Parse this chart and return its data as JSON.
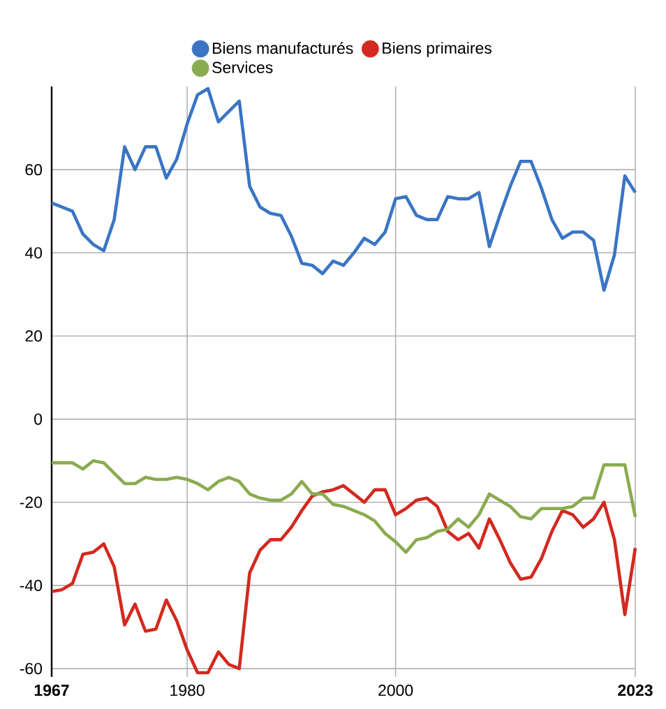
{
  "chart_data": {
    "type": "line",
    "x": [
      1967,
      1968,
      1969,
      1970,
      1971,
      1972,
      1973,
      1974,
      1975,
      1976,
      1977,
      1978,
      1979,
      1980,
      1981,
      1982,
      1983,
      1984,
      1985,
      1986,
      1987,
      1988,
      1989,
      1990,
      1991,
      1992,
      1993,
      1994,
      1995,
      1996,
      1997,
      1998,
      1999,
      2000,
      2001,
      2002,
      2003,
      2004,
      2005,
      2006,
      2007,
      2008,
      2009,
      2010,
      2011,
      2012,
      2013,
      2014,
      2015,
      2016,
      2017,
      2018,
      2019,
      2020,
      2021,
      2022,
      2023
    ],
    "series": [
      {
        "name": "Biens manufacturés",
        "color": "#3a75c4",
        "values": [
          52,
          51,
          50,
          44.5,
          42,
          40.5,
          48,
          65.5,
          60,
          65.5,
          65.5,
          58,
          62.5,
          71,
          78,
          79.5,
          71.5,
          74,
          76.5,
          56,
          51,
          49.5,
          49,
          44,
          37.5,
          37,
          35,
          38,
          37,
          40,
          43.5,
          42,
          45,
          53,
          53.5,
          49,
          48,
          48,
          53.5,
          53,
          53,
          54.5,
          41.5,
          49,
          56,
          62,
          62,
          55.5,
          48,
          43.5,
          45,
          45,
          43,
          31,
          39.5,
          58.5,
          54.5
        ]
      },
      {
        "name": "Biens primaires",
        "color": "#d3291f",
        "values": [
          -41.5,
          -41,
          -39.5,
          -32.5,
          -32,
          -30,
          -35.5,
          -49.5,
          -44.5,
          -51,
          -50.5,
          -43.5,
          -48.5,
          -55.5,
          -61,
          -61,
          -56,
          -59,
          -60,
          -37,
          -31.5,
          -29,
          -29,
          -26,
          -22,
          -18.5,
          -17.5,
          -17,
          -16,
          -18,
          -20,
          -17,
          -17,
          -23,
          -21.5,
          -19.5,
          -19,
          -21,
          -27,
          -29,
          -27.5,
          -31,
          -24,
          -29,
          -34.5,
          -38.5,
          -38,
          -33.5,
          -27,
          -22,
          -23,
          -26,
          -24,
          -20,
          -29,
          -47,
          -31
        ]
      },
      {
        "name": "Services",
        "color": "#8aab4f",
        "values": [
          -10.5,
          -10.5,
          -10.5,
          -12,
          -10,
          -10.5,
          -13,
          -15.5,
          -15.5,
          -14,
          -14.5,
          -14.5,
          -14,
          -14.5,
          -15.5,
          -17,
          -15,
          -14,
          -15,
          -18,
          -19,
          -19.5,
          -19.5,
          -18,
          -15,
          -18,
          -18,
          -20.5,
          -21,
          -22,
          -23,
          -24.5,
          -27.5,
          -29.5,
          -32,
          -29,
          -28.5,
          -27,
          -26.5,
          -24,
          -26,
          -23,
          -18,
          -19.5,
          -21,
          -23.5,
          -24,
          -21.5,
          -21.5,
          -21.5,
          -21,
          -19,
          -19,
          -11,
          -11,
          -11,
          -23.5
        ]
      }
    ],
    "xlim": [
      1967,
      2023
    ],
    "ylim": [
      -62,
      80
    ],
    "xticks": [
      {
        "value": 1967,
        "label": "**1967**"
      },
      1980,
      2000,
      {
        "value": 2023,
        "label": "**2023**"
      }
    ],
    "yticks": [
      -60,
      -40,
      -20,
      0,
      20,
      40,
      60
    ],
    "grid": true,
    "legend": "top",
    "marker": "none",
    "line_style": "solid"
  }
}
